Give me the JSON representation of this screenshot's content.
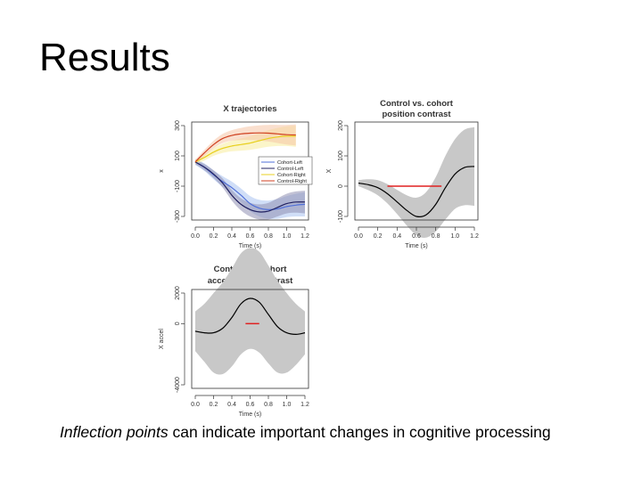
{
  "slide": {
    "title": "Results",
    "caption_italic": "Inflection points",
    "caption_rest": " can indicate important changes in cognitive processing"
  },
  "chart_data": [
    {
      "type": "line",
      "title": "X trajectories",
      "xlabel": "Time (s)",
      "ylabel": "x",
      "xlim": [
        0,
        1.2
      ],
      "ylim": [
        -300,
        300
      ],
      "xticks": [
        "0.0",
        "0.2",
        "0.4",
        "0.6",
        "0.8",
        "1.0",
        "1.2"
      ],
      "yticks": [
        "-300",
        "-100",
        "100",
        "300"
      ],
      "legend": {
        "placement": "right",
        "entries": [
          "Cohort-Left",
          "Control-Left",
          "Cohort-Right",
          "Control-Right"
        ]
      },
      "series": [
        {
          "name": "Cohort-Left",
          "color": "#4f6fd8",
          "band_color": "#aac3f0",
          "x": [
            0,
            0.1,
            0.2,
            0.3,
            0.4,
            0.5,
            0.6,
            0.7,
            0.8,
            0.9,
            1.0,
            1.1,
            1.2
          ],
          "y": [
            60,
            25,
            -25,
            -70,
            -110,
            -160,
            -215,
            -245,
            -255,
            -250,
            -235,
            -225,
            -220
          ],
          "band": [
            20,
            25,
            30,
            35,
            40,
            45,
            50,
            55,
            60,
            65,
            70,
            75,
            80
          ]
        },
        {
          "name": "Control-Left",
          "color": "#202060",
          "band_color": "#8f8fb3",
          "x": [
            0,
            0.1,
            0.2,
            0.3,
            0.4,
            0.5,
            0.6,
            0.7,
            0.8,
            0.9,
            1.0,
            1.1,
            1.2
          ],
          "y": [
            60,
            25,
            -20,
            -80,
            -160,
            -220,
            -255,
            -270,
            -265,
            -240,
            -215,
            -205,
            -205
          ],
          "band": [
            15,
            20,
            25,
            30,
            35,
            40,
            45,
            50,
            55,
            60,
            65,
            70,
            75
          ]
        },
        {
          "name": "Cohort-Right",
          "color": "#e8d020",
          "band_color": "#f7ec9c",
          "x": [
            0,
            0.1,
            0.2,
            0.3,
            0.4,
            0.5,
            0.6,
            0.7,
            0.8,
            0.9,
            1.0,
            1.1
          ],
          "y": [
            60,
            90,
            125,
            150,
            165,
            175,
            185,
            200,
            215,
            225,
            230,
            230
          ],
          "band": [
            15,
            20,
            25,
            30,
            35,
            40,
            45,
            50,
            55,
            60,
            65,
            70
          ]
        },
        {
          "name": "Control-Right",
          "color": "#d04020",
          "band_color": "#f6c4a6",
          "x": [
            0,
            0.1,
            0.2,
            0.3,
            0.4,
            0.5,
            0.6,
            0.7,
            0.8,
            0.9,
            1.0,
            1.1
          ],
          "y": [
            60,
            120,
            175,
            215,
            235,
            245,
            250,
            252,
            250,
            245,
            240,
            238
          ],
          "band": [
            15,
            20,
            25,
            30,
            35,
            40,
            45,
            50,
            55,
            60,
            65,
            70
          ]
        }
      ],
      "grid": false
    },
    {
      "type": "line",
      "title": "Control vs. cohort position contrast",
      "xlabel": "Time (s)",
      "ylabel": "X",
      "xlim": [
        0,
        1.2
      ],
      "ylim": [
        -100,
        200
      ],
      "xticks": [
        "0.0",
        "0.2",
        "0.4",
        "0.6",
        "0.8",
        "1.0",
        "1.2"
      ],
      "yticks": [
        "-100",
        "0",
        "100",
        "200"
      ],
      "series": [
        {
          "color": "#000000",
          "band_color": "#c8c8c8",
          "x": [
            0,
            0.1,
            0.2,
            0.3,
            0.4,
            0.5,
            0.6,
            0.7,
            0.8,
            0.9,
            1.0,
            1.1,
            1.2
          ],
          "y": [
            10,
            5,
            -5,
            -25,
            -52,
            -80,
            -100,
            -95,
            -60,
            -5,
            40,
            62,
            65
          ],
          "band": [
            10,
            18,
            25,
            32,
            40,
            50,
            62,
            75,
            90,
            105,
            115,
            125,
            130
          ]
        }
      ],
      "highlight": {
        "color": "#e02020",
        "x": [
          0.3,
          0.86
        ],
        "y": 0
      },
      "grid": false
    },
    {
      "type": "line",
      "title": "Control vs. cohort acceleration contrast",
      "xlabel": "Time (s)",
      "ylabel": "X accel",
      "xlim": [
        0,
        1.2
      ],
      "ylim": [
        -4000,
        2000
      ],
      "xticks": [
        "0.0",
        "0.2",
        "0.4",
        "0.6",
        "0.8",
        "1.0",
        "1.2"
      ],
      "yticks": [
        "-4000",
        "0",
        "2000"
      ],
      "series": [
        {
          "color": "#000000",
          "band_color": "#c8c8c8",
          "x": [
            0,
            0.1,
            0.2,
            0.3,
            0.4,
            0.5,
            0.6,
            0.7,
            0.8,
            0.9,
            1.0,
            1.1,
            1.2
          ],
          "y": [
            -500,
            -600,
            -600,
            -300,
            400,
            1300,
            1650,
            1400,
            600,
            -200,
            -600,
            -700,
            -600
          ],
          "band": [
            1300,
            1900,
            2600,
            3000,
            3200,
            3300,
            3300,
            3300,
            3200,
            3000,
            2600,
            2000,
            1400
          ]
        }
      ],
      "highlight": {
        "color": "#e02020",
        "x": [
          0.55,
          0.7
        ],
        "y": 0
      },
      "grid": false
    }
  ]
}
